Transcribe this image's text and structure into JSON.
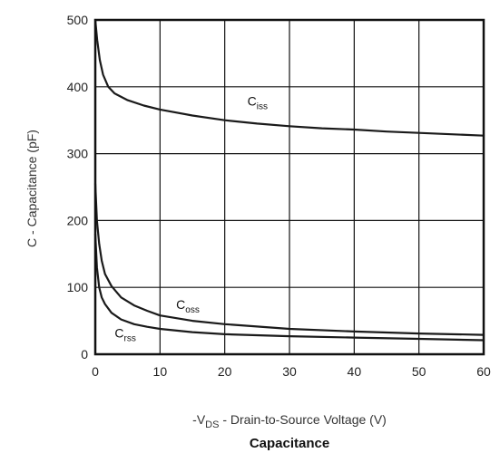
{
  "chart_data": {
    "type": "line",
    "title": "Capacitance",
    "xlabel": {
      "prefix": "-V",
      "sub": "DS",
      "suffix": " - Drain-to-Source Voltage (V)"
    },
    "ylabel": "C - Capacitance (pF)",
    "xlim": [
      0,
      60
    ],
    "ylim": [
      0,
      500
    ],
    "xticks": [
      "0",
      "10",
      "20",
      "30",
      "40",
      "50",
      "60"
    ],
    "yticks": [
      "0",
      "100",
      "200",
      "300",
      "400",
      "500"
    ],
    "grid": true,
    "series": [
      {
        "name": "Ciss",
        "label_main": "C",
        "label_sub": "iss",
        "label_at": [
          23.5,
          372
        ],
        "x": [
          0,
          0.3,
          0.7,
          1.2,
          2,
          3,
          5,
          7.5,
          10,
          15,
          20,
          25,
          30,
          35,
          40,
          45,
          50,
          55,
          60
        ],
        "y": [
          505,
          470,
          440,
          418,
          400,
          390,
          380,
          372,
          366,
          357,
          350,
          345,
          341,
          338,
          336,
          333,
          331,
          329,
          327
        ]
      },
      {
        "name": "Coss",
        "label_main": "C",
        "label_sub": "oss",
        "label_at": [
          12.5,
          68
        ],
        "x": [
          0,
          0.25,
          0.6,
          1,
          1.5,
          2.5,
          4,
          6,
          8,
          10,
          15,
          20,
          30,
          40,
          50,
          60
        ],
        "y": [
          255,
          200,
          165,
          140,
          120,
          102,
          85,
          73,
          65,
          58,
          50,
          45,
          38,
          34,
          31,
          29
        ],
        "_d": null
      },
      {
        "name": "Crss",
        "label_main": "C",
        "label_sub": "rss",
        "label_at": [
          3,
          25
        ],
        "x": [
          0,
          0.25,
          0.6,
          1,
          1.5,
          2.5,
          4,
          6,
          8,
          10,
          15,
          20,
          30,
          40,
          50,
          60
        ],
        "y": [
          180,
          130,
          100,
          85,
          75,
          62,
          52,
          45,
          41,
          38,
          33,
          30,
          27,
          25,
          23,
          21
        ]
      }
    ]
  }
}
